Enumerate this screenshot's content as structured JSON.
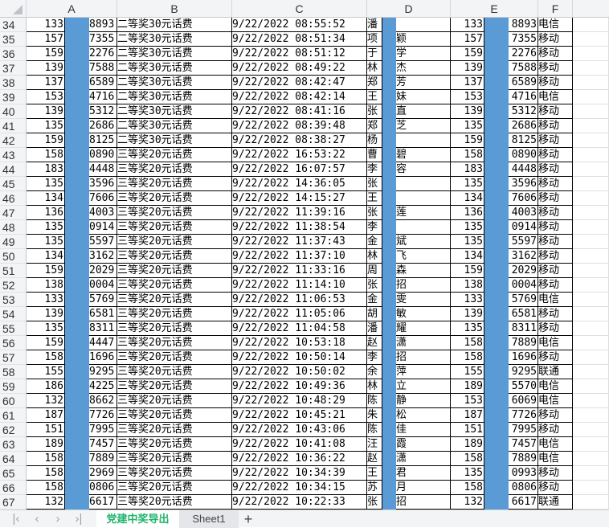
{
  "columns": [
    "A",
    "B",
    "C",
    "D",
    "E",
    "F"
  ],
  "mask_color": "#5b9bd5",
  "rows": [
    {
      "n": "34",
      "a1": "133",
      "a2": "8893",
      "b": "二等奖30元话费",
      "c": "9/22/2022 08:55:52",
      "d1": "潘",
      "d2": "",
      "e1": "133",
      "e2": "8893",
      "f": "电信"
    },
    {
      "n": "35",
      "a1": "157",
      "a2": "7355",
      "b": "二等奖30元话费",
      "c": "9/22/2022 08:51:34",
      "d1": "项",
      "d2": "颖",
      "e1": "157",
      "e2": "7355",
      "f": "移动"
    },
    {
      "n": "36",
      "a1": "159",
      "a2": "2276",
      "b": "二等奖30元话费",
      "c": "9/22/2022 08:51:12",
      "d1": "于",
      "d2": "学",
      "e1": "159",
      "e2": "2276",
      "f": "移动"
    },
    {
      "n": "37",
      "a1": "139",
      "a2": "7588",
      "b": "二等奖30元话费",
      "c": "9/22/2022 08:49:22",
      "d1": "林",
      "d2": "杰",
      "e1": "139",
      "e2": "7588",
      "f": "移动"
    },
    {
      "n": "38",
      "a1": "137",
      "a2": "6589",
      "b": "二等奖30元话费",
      "c": "9/22/2022 08:42:47",
      "d1": "郑",
      "d2": "芳",
      "e1": "137",
      "e2": "6589",
      "f": "移动"
    },
    {
      "n": "39",
      "a1": "153",
      "a2": "4716",
      "b": "二等奖30元话费",
      "c": "9/22/2022 08:42:14",
      "d1": "王",
      "d2": "妹",
      "e1": "153",
      "e2": "4716",
      "f": "电信"
    },
    {
      "n": "40",
      "a1": "139",
      "a2": "5312",
      "b": "二等奖30元话费",
      "c": "9/22/2022 08:41:16",
      "d1": "张",
      "d2": "直",
      "e1": "139",
      "e2": "5312",
      "f": "移动"
    },
    {
      "n": "41",
      "a1": "135",
      "a2": "2686",
      "b": "二等奖30元话费",
      "c": "9/22/2022 08:39:48",
      "d1": "郑",
      "d2": "芝",
      "e1": "135",
      "e2": "2686",
      "f": "移动"
    },
    {
      "n": "42",
      "a1": "159",
      "a2": "8125",
      "b": "二等奖30元话费",
      "c": "9/22/2022 08:38:27",
      "d1": "杨",
      "d2": "",
      "e1": "159",
      "e2": "8125",
      "f": "移动"
    },
    {
      "n": "43",
      "a1": "158",
      "a2": "0890",
      "b": "三等奖20元话费",
      "c": "9/22/2022 16:53:22",
      "d1": "曹",
      "d2": "碧",
      "e1": "158",
      "e2": "0890",
      "f": "移动"
    },
    {
      "n": "44",
      "a1": "183",
      "a2": "4448",
      "b": "三等奖20元话费",
      "c": "9/22/2022 16:07:57",
      "d1": "李",
      "d2": "容",
      "e1": "183",
      "e2": "4448",
      "f": "移动"
    },
    {
      "n": "45",
      "a1": "135",
      "a2": "3596",
      "b": "三等奖20元话费",
      "c": "9/22/2022 14:36:05",
      "d1": "张",
      "d2": "",
      "e1": "135",
      "e2": "3596",
      "f": "移动"
    },
    {
      "n": "46",
      "a1": "134",
      "a2": "7606",
      "b": "三等奖20元话费",
      "c": "9/22/2022 14:15:27",
      "d1": "王",
      "d2": "",
      "e1": "134",
      "e2": "7606",
      "f": "移动"
    },
    {
      "n": "47",
      "a1": "136",
      "a2": "4003",
      "b": "三等奖20元话费",
      "c": "9/22/2022 11:39:16",
      "d1": "张",
      "d2": "莲",
      "e1": "136",
      "e2": "4003",
      "f": "移动"
    },
    {
      "n": "48",
      "a1": "135",
      "a2": "0914",
      "b": "三等奖20元话费",
      "c": "9/22/2022 11:38:54",
      "d1": "李",
      "d2": "",
      "e1": "135",
      "e2": "0914",
      "f": "移动"
    },
    {
      "n": "49",
      "a1": "135",
      "a2": "5597",
      "b": "三等奖20元话费",
      "c": "9/22/2022 11:37:43",
      "d1": "金",
      "d2": "斌",
      "e1": "135",
      "e2": "5597",
      "f": "移动"
    },
    {
      "n": "50",
      "a1": "134",
      "a2": "3162",
      "b": "三等奖20元话费",
      "c": "9/22/2022 11:37:10",
      "d1": "林",
      "d2": "飞",
      "e1": "134",
      "e2": "3162",
      "f": "移动"
    },
    {
      "n": "51",
      "a1": "159",
      "a2": "2029",
      "b": "三等奖20元话费",
      "c": "9/22/2022 11:33:16",
      "d1": "周",
      "d2": "森",
      "e1": "159",
      "e2": "2029",
      "f": "移动"
    },
    {
      "n": "52",
      "a1": "138",
      "a2": "0004",
      "b": "三等奖20元话费",
      "c": "9/22/2022 11:14:10",
      "d1": "张",
      "d2": "招",
      "e1": "138",
      "e2": "0004",
      "f": "移动"
    },
    {
      "n": "53",
      "a1": "133",
      "a2": "5769",
      "b": "三等奖20元话费",
      "c": "9/22/2022 11:06:53",
      "d1": "金",
      "d2": "雯",
      "e1": "133",
      "e2": "5769",
      "f": "电信"
    },
    {
      "n": "54",
      "a1": "139",
      "a2": "6581",
      "b": "三等奖20元话费",
      "c": "9/22/2022 11:05:06",
      "d1": "胡",
      "d2": "敏",
      "e1": "139",
      "e2": "6581",
      "f": "移动"
    },
    {
      "n": "55",
      "a1": "135",
      "a2": "8311",
      "b": "三等奖20元话费",
      "c": "9/22/2022 11:04:58",
      "d1": "潘",
      "d2": "耀",
      "e1": "135",
      "e2": "8311",
      "f": "移动"
    },
    {
      "n": "56",
      "a1": "159",
      "a2": "4447",
      "b": "三等奖20元话费",
      "c": "9/22/2022 10:53:18",
      "d1": "赵",
      "d2": "潇",
      "e1": "158",
      "e2": "7889",
      "f": "电信"
    },
    {
      "n": "57",
      "a1": "158",
      "a2": "1696",
      "b": "三等奖20元话费",
      "c": "9/22/2022 10:50:14",
      "d1": "李",
      "d2": "招",
      "e1": "158",
      "e2": "1696",
      "f": "移动"
    },
    {
      "n": "58",
      "a1": "155",
      "a2": "9295",
      "b": "三等奖20元话费",
      "c": "9/22/2022 10:50:02",
      "d1": "余",
      "d2": "萍",
      "e1": "155",
      "e2": "9295",
      "f": "联通"
    },
    {
      "n": "59",
      "a1": "186",
      "a2": "4225",
      "b": "三等奖20元话费",
      "c": "9/22/2022 10:49:36",
      "d1": "林",
      "d2": "立",
      "e1": "189",
      "e2": "5570",
      "f": "电信"
    },
    {
      "n": "60",
      "a1": "132",
      "a2": "8662",
      "b": "三等奖20元话费",
      "c": "9/22/2022 10:48:29",
      "d1": "陈",
      "d2": "静",
      "e1": "153",
      "e2": "6069",
      "f": "电信"
    },
    {
      "n": "61",
      "a1": "187",
      "a2": "7726",
      "b": "三等奖20元话费",
      "c": "9/22/2022 10:45:21",
      "d1": "朱",
      "d2": "松",
      "e1": "187",
      "e2": "7726",
      "f": "移动"
    },
    {
      "n": "62",
      "a1": "151",
      "a2": "7995",
      "b": "三等奖20元话费",
      "c": "9/22/2022 10:43:06",
      "d1": "陈",
      "d2": "佳",
      "e1": "151",
      "e2": "7995",
      "f": "移动"
    },
    {
      "n": "63",
      "a1": "189",
      "a2": "7457",
      "b": "三等奖20元话费",
      "c": "9/22/2022 10:41:08",
      "d1": "汪",
      "d2": "霞",
      "e1": "189",
      "e2": "7457",
      "f": "电信"
    },
    {
      "n": "64",
      "a1": "158",
      "a2": "7889",
      "b": "三等奖20元话费",
      "c": "9/22/2022 10:36:22",
      "d1": "赵",
      "d2": "潇",
      "e1": "158",
      "e2": "7889",
      "f": "电信"
    },
    {
      "n": "65",
      "a1": "158",
      "a2": "2969",
      "b": "三等奖20元话费",
      "c": "9/22/2022 10:34:39",
      "d1": "王",
      "d2": "君",
      "e1": "135",
      "e2": "0993",
      "f": "移动"
    },
    {
      "n": "66",
      "a1": "158",
      "a2": "0806",
      "b": "三等奖20元话费",
      "c": "9/22/2022 10:34:15",
      "d1": "苏",
      "d2": "月",
      "e1": "158",
      "e2": "0806",
      "f": "移动"
    },
    {
      "n": "67",
      "a1": "132",
      "a2": "6617",
      "b": "三等奖20元话费",
      "c": "9/22/2022 10:22:33",
      "d1": "张",
      "d2": "招",
      "e1": "132",
      "e2": "6617",
      "f": "联通"
    }
  ],
  "sheet_tabs": [
    {
      "label": "党建中奖导出",
      "active": true
    },
    {
      "label": "Sheet1",
      "active": false
    }
  ],
  "add_sheet_label": "+",
  "nav_icons": [
    "first-sheet-icon",
    "prev-sheet-icon",
    "next-sheet-icon",
    "last-sheet-icon"
  ],
  "active_tab_color": "#1fb36b"
}
